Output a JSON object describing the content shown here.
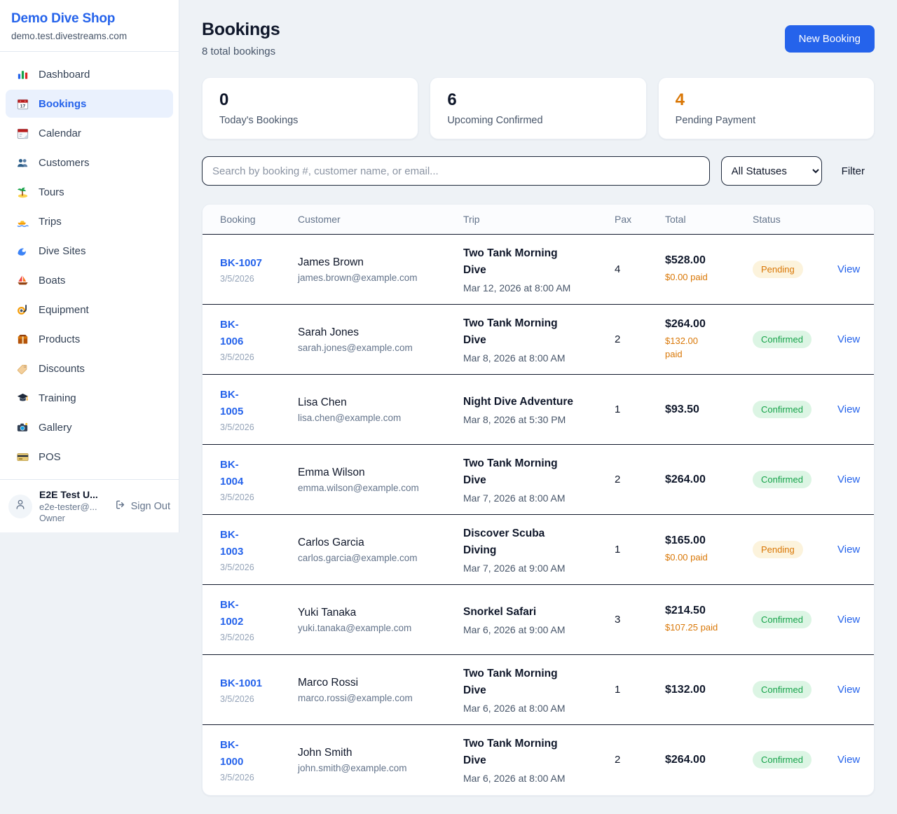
{
  "sidebar": {
    "brand": {
      "name": "Demo Dive Shop",
      "domain": "demo.test.divestreams.com"
    },
    "nav": [
      {
        "label": "Dashboard",
        "icon": "bar-chart",
        "active": false
      },
      {
        "label": "Bookings",
        "icon": "booking-calendar",
        "active": true
      },
      {
        "label": "Calendar",
        "icon": "calendar",
        "active": false
      },
      {
        "label": "Customers",
        "icon": "users",
        "active": false
      },
      {
        "label": "Tours",
        "icon": "palm-island",
        "active": false
      },
      {
        "label": "Trips",
        "icon": "speedboat",
        "active": false
      },
      {
        "label": "Dive Sites",
        "icon": "wave",
        "active": false
      },
      {
        "label": "Boats",
        "icon": "sailboat",
        "active": false
      },
      {
        "label": "Equipment",
        "icon": "snorkel-mask",
        "active": false
      },
      {
        "label": "Products",
        "icon": "package",
        "active": false
      },
      {
        "label": "Discounts",
        "icon": "tag",
        "active": false
      },
      {
        "label": "Training",
        "icon": "graduation-cap",
        "active": false
      },
      {
        "label": "Gallery",
        "icon": "camera",
        "active": false
      },
      {
        "label": "POS",
        "icon": "credit-card",
        "active": false
      }
    ],
    "user": {
      "name": "E2E Test U...",
      "email": "e2e-tester@...",
      "role": "Owner",
      "sign_out_label": "Sign Out"
    }
  },
  "header": {
    "title": "Bookings",
    "subtitle": "8 total bookings",
    "new_booking_label": "New Booking"
  },
  "stats": [
    {
      "value": "0",
      "label": "Today's Bookings",
      "value_color": "#0f172a"
    },
    {
      "value": "6",
      "label": "Upcoming Confirmed",
      "value_color": "#0f172a"
    },
    {
      "value": "4",
      "label": "Pending Payment",
      "value_color": "#d97706"
    }
  ],
  "controls": {
    "search_placeholder": "Search by booking #, customer name, or email...",
    "status_filter_value": "All Statuses",
    "filter_label": "Filter"
  },
  "table": {
    "columns": [
      "Booking",
      "Customer",
      "Trip",
      "Pax",
      "Total",
      "Status"
    ],
    "view_label": "View",
    "rows": [
      {
        "booking_id": "BK-1007",
        "booking_date": "3/5/2026",
        "customer_name": "James Brown",
        "customer_email": "james.brown@example.com",
        "trip_name": "Two Tank Morning\nDive",
        "trip_datetime": "Mar 12, 2026 at 8:00 AM",
        "pax": "4",
        "total": "$528.00",
        "paid": "$0.00 paid",
        "status": "Pending"
      },
      {
        "booking_id": "BK-\n1006",
        "booking_date": "3/5/2026",
        "customer_name": "Sarah Jones",
        "customer_email": "sarah.jones@example.com",
        "trip_name": "Two Tank Morning\nDive",
        "trip_datetime": "Mar 8, 2026 at 8:00 AM",
        "pax": "2",
        "total": "$264.00",
        "paid": "$132.00\npaid",
        "status": "Confirmed"
      },
      {
        "booking_id": "BK-\n1005",
        "booking_date": "3/5/2026",
        "customer_name": "Lisa Chen",
        "customer_email": "lisa.chen@example.com",
        "trip_name": "Night Dive Adventure",
        "trip_datetime": "Mar 8, 2026 at 5:30 PM",
        "pax": "1",
        "total": "$93.50",
        "paid": null,
        "status": "Confirmed"
      },
      {
        "booking_id": "BK-\n1004",
        "booking_date": "3/5/2026",
        "customer_name": "Emma Wilson",
        "customer_email": "emma.wilson@example.com",
        "trip_name": "Two Tank Morning\nDive",
        "trip_datetime": "Mar 7, 2026 at 8:00 AM",
        "pax": "2",
        "total": "$264.00",
        "paid": null,
        "status": "Confirmed"
      },
      {
        "booking_id": "BK-\n1003",
        "booking_date": "3/5/2026",
        "customer_name": "Carlos Garcia",
        "customer_email": "carlos.garcia@example.com",
        "trip_name": "Discover Scuba\nDiving",
        "trip_datetime": "Mar 7, 2026 at 9:00 AM",
        "pax": "1",
        "total": "$165.00",
        "paid": "$0.00 paid",
        "status": "Pending"
      },
      {
        "booking_id": "BK-\n1002",
        "booking_date": "3/5/2026",
        "customer_name": "Yuki Tanaka",
        "customer_email": "yuki.tanaka@example.com",
        "trip_name": "Snorkel Safari",
        "trip_datetime": "Mar 6, 2026 at 9:00 AM",
        "pax": "3",
        "total": "$214.50",
        "paid": "$107.25 paid",
        "status": "Confirmed"
      },
      {
        "booking_id": "BK-1001",
        "booking_date": "3/5/2026",
        "customer_name": "Marco Rossi",
        "customer_email": "marco.rossi@example.com",
        "trip_name": "Two Tank Morning\nDive",
        "trip_datetime": "Mar 6, 2026 at 8:00 AM",
        "pax": "1",
        "total": "$132.00",
        "paid": null,
        "status": "Confirmed"
      },
      {
        "booking_id": "BK-\n1000",
        "booking_date": "3/5/2026",
        "customer_name": "John Smith",
        "customer_email": "john.smith@example.com",
        "trip_name": "Two Tank Morning\nDive",
        "trip_datetime": "Mar 6, 2026 at 8:00 AM",
        "pax": "2",
        "total": "$264.00",
        "paid": null,
        "status": "Confirmed"
      }
    ]
  },
  "colors": {
    "accent_blue": "#2563eb",
    "pending_text": "#d97706",
    "pending_bg": "#fcf3dc",
    "confirmed_text": "#16a34a",
    "confirmed_bg": "#dcf5e4",
    "dark_text": "#0f172a",
    "muted_text": "#64748b",
    "row_divider": "#0f172a"
  }
}
